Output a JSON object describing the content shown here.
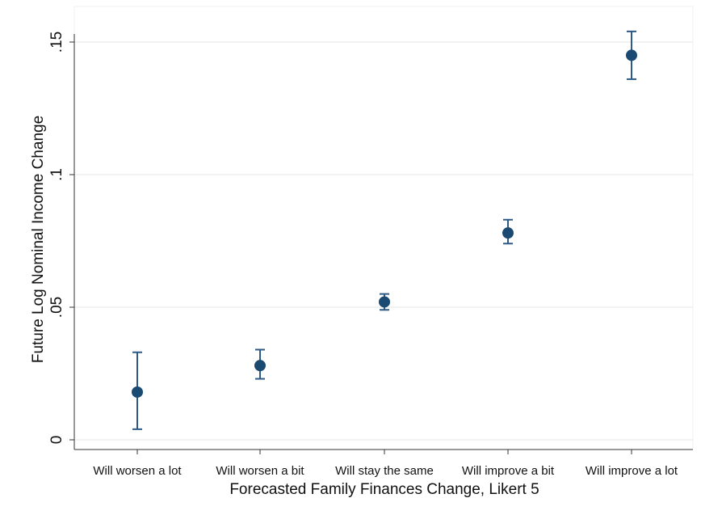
{
  "chart_data": {
    "type": "scatter",
    "title": "",
    "xlabel": "Forecasted Family Finances Change, Likert 5",
    "ylabel": "Future Log Nominal Income Change",
    "categories": [
      "Will worsen a lot",
      "Will worsen a bit",
      "Will stay the same",
      "Will improve a bit",
      "Will improve a lot"
    ],
    "series": [
      {
        "values": [
          0.018,
          0.028,
          0.052,
          0.078,
          0.145
        ],
        "ci_low": [
          0.004,
          0.023,
          0.049,
          0.074,
          0.136
        ],
        "ci_high": [
          0.033,
          0.034,
          0.055,
          0.083,
          0.154
        ]
      }
    ],
    "ylim": [
      0,
      0.15
    ],
    "yticks": [
      0,
      0.05,
      0.1,
      0.15
    ],
    "ytick_labels": [
      "0",
      ".05",
      ".1",
      ".15"
    ],
    "grid": true,
    "colors": {
      "marker": "#1a4a72",
      "errorbar": "#2e5a86",
      "grid": "#e6ece9",
      "axis": "#333333",
      "background": "#ffffff"
    }
  }
}
